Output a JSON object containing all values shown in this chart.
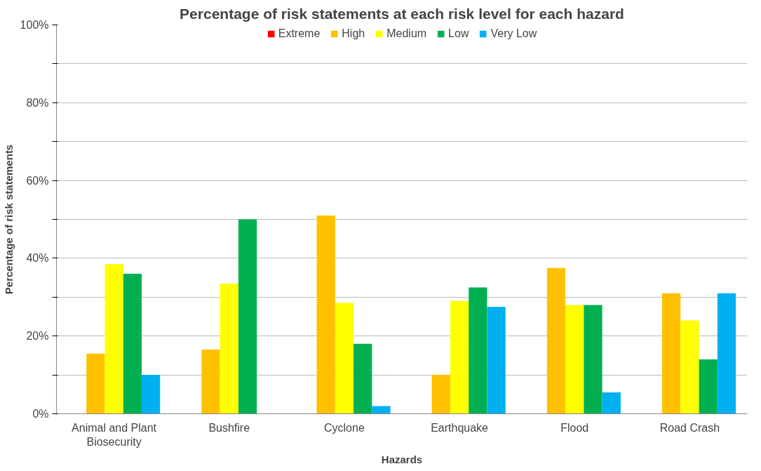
{
  "chart_data": {
    "type": "bar",
    "title": "Percentage of risk statements at each risk level for each hazard",
    "xlabel": "Hazards",
    "ylabel": "Percentage of risk statements",
    "categories": [
      "Animal and Plant Biosecurity",
      "Bushfire",
      "Cyclone",
      "Earthquake",
      "Flood",
      "Road Crash"
    ],
    "series": [
      {
        "name": "Extreme",
        "color": "#ff0000",
        "values": [
          0,
          0,
          0,
          0,
          0,
          0
        ]
      },
      {
        "name": "High",
        "color": "#ffc000",
        "values": [
          15.5,
          16.5,
          51,
          10,
          37.5,
          31
        ]
      },
      {
        "name": "Medium",
        "color": "#ffff00",
        "values": [
          38.5,
          33.5,
          28.5,
          29,
          28,
          24
        ]
      },
      {
        "name": "Low",
        "color": "#00b050",
        "values": [
          36,
          50,
          18,
          32.5,
          28,
          14
        ]
      },
      {
        "name": "Very Low",
        "color": "#00b0f0",
        "values": [
          10,
          0,
          2,
          27.5,
          5.5,
          31
        ]
      }
    ],
    "ylim": [
      0,
      100
    ],
    "yticks": [
      {
        "value": 0,
        "label": "0%"
      },
      {
        "value": 10,
        "label": null
      },
      {
        "value": 20,
        "label": "20%"
      },
      {
        "value": 30,
        "label": null
      },
      {
        "value": 40,
        "label": "40%"
      },
      {
        "value": 50,
        "label": null
      },
      {
        "value": 60,
        "label": "60%"
      },
      {
        "value": 70,
        "label": null
      },
      {
        "value": 80,
        "label": "80%"
      },
      {
        "value": 90,
        "label": null
      },
      {
        "value": 100,
        "label": "100%"
      }
    ],
    "grid": "y",
    "legend": "top"
  }
}
